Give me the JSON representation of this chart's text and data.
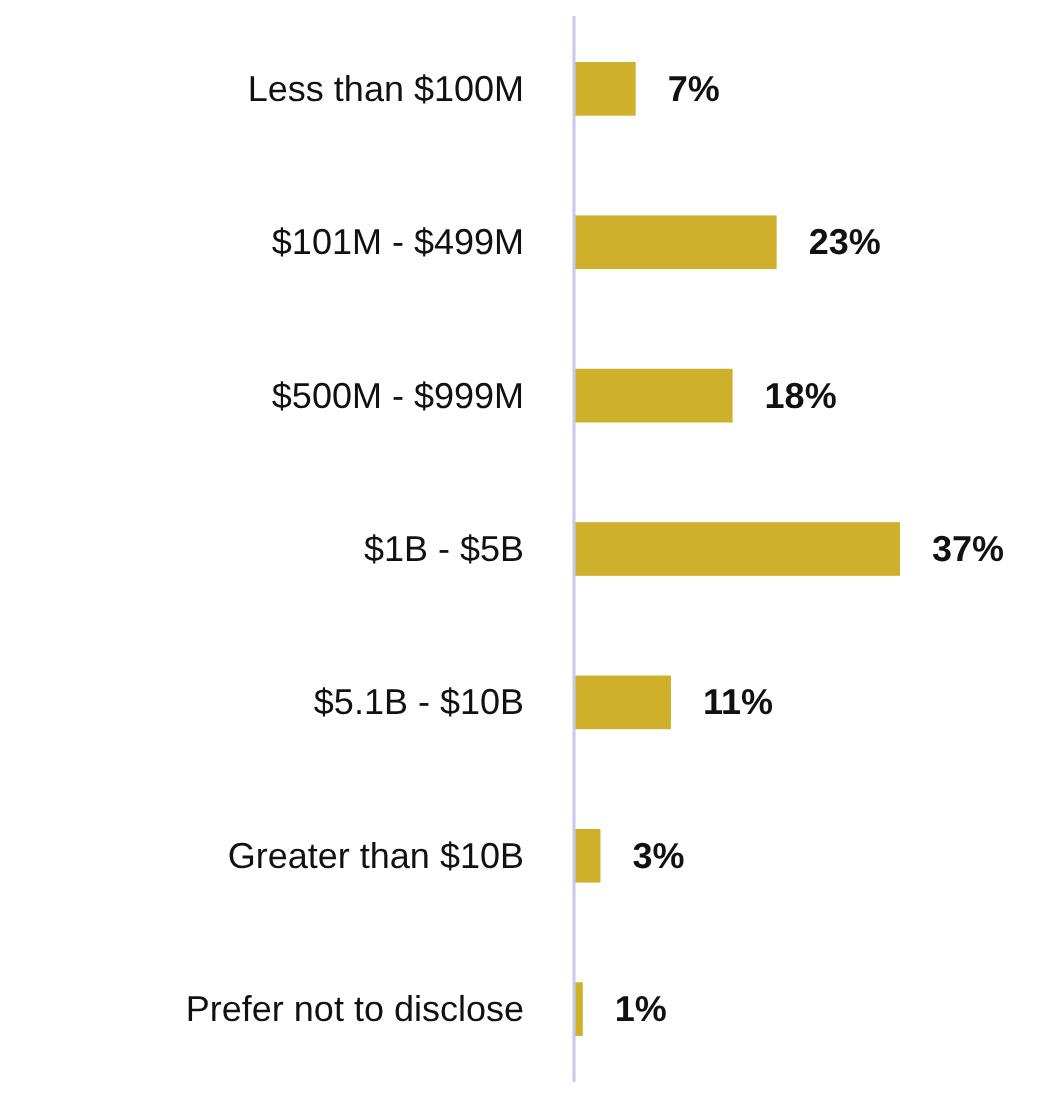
{
  "chart_data": {
    "type": "bar",
    "orientation": "horizontal",
    "categories": [
      "Less than $100M",
      "$101M - $499M",
      "$500M - $999M",
      "$1B - $5B",
      "$5.1B - $10B",
      "Greater than $10B",
      "Prefer not to disclose"
    ],
    "values": [
      7,
      23,
      18,
      37,
      11,
      3,
      1
    ],
    "value_labels": [
      "7%",
      "23%",
      "18%",
      "37%",
      "11%",
      "3%",
      "1%"
    ],
    "color": "#cfb02a"
  }
}
